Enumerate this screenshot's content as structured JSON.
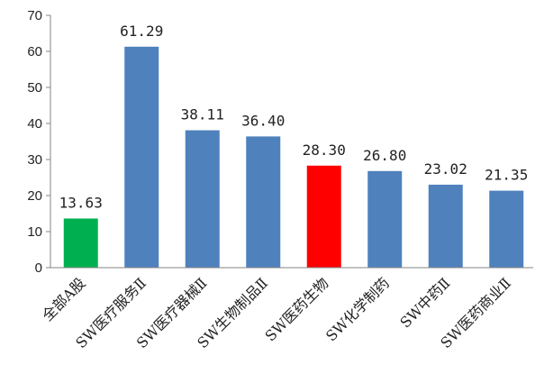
{
  "chart_data": {
    "type": "bar",
    "title": "",
    "xlabel": "",
    "ylabel": "",
    "ylim": [
      0,
      70
    ],
    "yticks": [
      0,
      10,
      20,
      30,
      40,
      50,
      60,
      70
    ],
    "grid": false,
    "legend": "none",
    "categories": [
      "全部A股",
      "SW医疗服务Ⅱ",
      "SW医疗器械Ⅱ",
      "SW生物制品Ⅱ",
      "SW医药生物",
      "SW化学制药",
      "SW中药Ⅱ",
      "SW医药商业Ⅱ"
    ],
    "values": [
      13.63,
      61.29,
      38.11,
      36.4,
      28.3,
      26.8,
      23.02,
      21.35
    ],
    "value_labels": [
      "13.63",
      "61.29",
      "38.11",
      "36.40",
      "28.30",
      "26.80",
      "23.02",
      "21.35"
    ],
    "colors": [
      "#00b050",
      "#4f81bd",
      "#4f81bd",
      "#4f81bd",
      "#ff0000",
      "#4f81bd",
      "#4f81bd",
      "#4f81bd"
    ]
  }
}
